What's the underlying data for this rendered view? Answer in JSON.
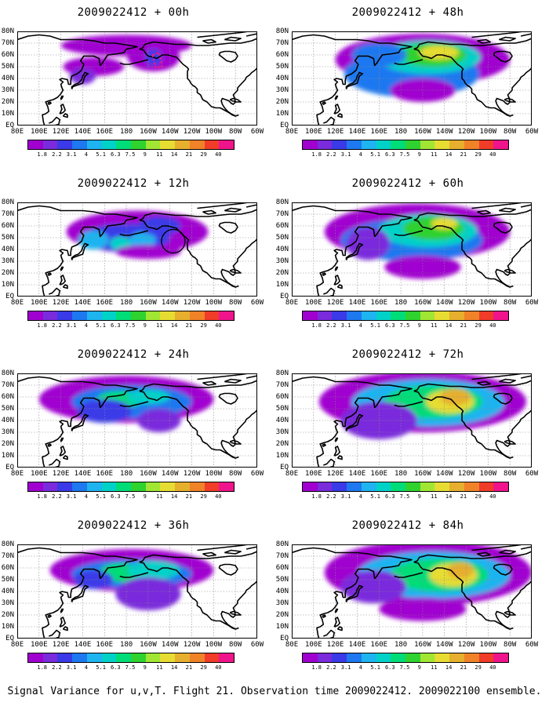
{
  "panels": [
    {
      "title": "2009022412 + 00h",
      "lead_hours": 0
    },
    {
      "title": "2009022412 + 48h",
      "lead_hours": 48
    },
    {
      "title": "2009022412 + 12h",
      "lead_hours": 12
    },
    {
      "title": "2009022412 + 60h",
      "lead_hours": 60
    },
    {
      "title": "2009022412 + 24h",
      "lead_hours": 24
    },
    {
      "title": "2009022412 + 72h",
      "lead_hours": 72
    },
    {
      "title": "2009022412 + 36h",
      "lead_hours": 36
    },
    {
      "title": "2009022412 + 84h",
      "lead_hours": 84
    }
  ],
  "x_ticks": [
    "80E",
    "100E",
    "120E",
    "140E",
    "160E",
    "180",
    "160W",
    "140W",
    "120W",
    "100W",
    "80W",
    "60W"
  ],
  "y_ticks": [
    "EQ",
    "10N",
    "20N",
    "30N",
    "40N",
    "50N",
    "60N",
    "70N",
    "80N"
  ],
  "colorbar": {
    "labels": [
      "1.8",
      "2.2",
      "3.1",
      "4",
      "5.1",
      "6.3",
      "7.5",
      "9",
      "11",
      "14",
      "21",
      "29",
      "40"
    ],
    "colors": [
      "#a000d0",
      "#7a2bdc",
      "#3a3ae8",
      "#1e78f0",
      "#1eb4f0",
      "#00d2c8",
      "#00dc78",
      "#2fd22f",
      "#a0e632",
      "#e6dc32",
      "#e6af2d",
      "#f08228",
      "#f03c28",
      "#f0148c"
    ]
  },
  "caption": "Signal Variance for u,v,T. Flight 21. Observation time 2009022412. 2009022100 ensemble.",
  "map": {
    "region": "North Pacific",
    "lon_range": [
      "80E",
      "60W"
    ],
    "lat_range": [
      "EQ",
      "80N"
    ],
    "colors": {
      "coastline": "#000000",
      "grid": "#8a8a8a",
      "background": "#ffffff"
    }
  }
}
